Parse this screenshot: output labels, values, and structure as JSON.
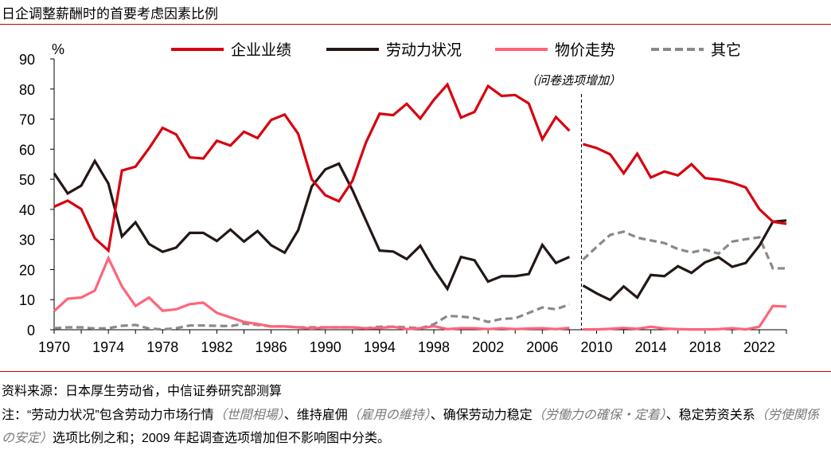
{
  "title": "日企调整薪酬时的首要考虑因素比例",
  "source": "资料来源：日本厚生劳动省，中信证券研究部测算",
  "note": [
    {
      "text": "注：“劳动力状况”包含劳动力市场行情",
      "jp": false
    },
    {
      "text": "（世間相場）",
      "jp": true
    },
    {
      "text": "、维持雇佣",
      "jp": false
    },
    {
      "text": "（雇用の維持）",
      "jp": true
    },
    {
      "text": "、确保劳动力稳定",
      "jp": false
    },
    {
      "text": "（労働力の確保・定着）",
      "jp": true
    },
    {
      "text": "、稳定劳资关系",
      "jp": false
    },
    {
      "text": "（労使関係の安定）",
      "jp": true
    },
    {
      "text": "选项比例之和；2009 年起调查选项增加但不影响图中分类。",
      "jp": false
    }
  ],
  "chart_data": {
    "type": "line",
    "ylabel": "%",
    "ylim": [
      0,
      90
    ],
    "yticks": [
      0,
      10,
      20,
      30,
      40,
      50,
      60,
      70,
      80,
      90
    ],
    "xlim": [
      1970,
      2024
    ],
    "xticks": [
      1970,
      1974,
      1978,
      1982,
      1986,
      1990,
      1994,
      1998,
      2002,
      2006,
      2010,
      2014,
      2018,
      2022
    ],
    "grid": false,
    "legend_position": "top",
    "annotation": "（问卷选项增加）",
    "break_year": 2009,
    "x": [
      1970,
      1971,
      1972,
      1973,
      1974,
      1975,
      1976,
      1977,
      1978,
      1979,
      1980,
      1981,
      1982,
      1983,
      1984,
      1985,
      1986,
      1987,
      1988,
      1989,
      1990,
      1991,
      1992,
      1993,
      1994,
      1995,
      1996,
      1997,
      1998,
      1999,
      2000,
      2001,
      2002,
      2003,
      2004,
      2005,
      2006,
      2007,
      2008,
      2009,
      2010,
      2011,
      2012,
      2013,
      2014,
      2015,
      2016,
      2017,
      2018,
      2019,
      2020,
      2021,
      2022,
      2023,
      2024
    ],
    "series": [
      {
        "name": "企业业绩",
        "color": "#d7000f",
        "dashed": false,
        "values": [
          40.9,
          42.9,
          40.1,
          30.4,
          26.3,
          52.9,
          54.2,
          60.3,
          67.1,
          64.9,
          57.3,
          56.9,
          62.8,
          61.2,
          65.8,
          63.7,
          69.7,
          71.5,
          65.1,
          50.0,
          44.7,
          42.7,
          49.5,
          62.3,
          71.8,
          71.3,
          75.1,
          70.2,
          76.4,
          81.5,
          70.5,
          72.4,
          81.0,
          77.7,
          78.0,
          75.2,
          63.3,
          70.7,
          66.1,
          61.7,
          60.4,
          58.3,
          52.0,
          58.5,
          50.6,
          52.6,
          51.3,
          55.0,
          50.4,
          49.9,
          48.9,
          47.3,
          40.1,
          35.9,
          35.2
        ]
      },
      {
        "name": "劳动力状况",
        "color": "#231815",
        "dashed": false,
        "values": [
          52.0,
          45.3,
          47.9,
          56.1,
          48.6,
          31.0,
          35.7,
          28.5,
          25.9,
          27.3,
          32.2,
          32.2,
          29.5,
          33.3,
          29.3,
          32.8,
          28.1,
          25.6,
          33.1,
          47.6,
          53.3,
          55.2,
          46.4,
          36.3,
          26.3,
          26.0,
          23.5,
          27.9,
          20.2,
          13.6,
          24.2,
          23.1,
          16.0,
          17.8,
          17.8,
          18.5,
          28.2,
          22.2,
          24.2,
          14.7,
          12.1,
          9.9,
          14.4,
          10.7,
          18.2,
          17.8,
          21.1,
          18.9,
          22.4,
          24.1,
          20.9,
          22.2,
          27.9,
          35.9,
          36.3
        ]
      },
      {
        "name": "物价走势",
        "color": "#ff6478",
        "dashed": false,
        "values": [
          6.2,
          10.3,
          10.7,
          13.0,
          23.8,
          14.4,
          7.9,
          10.7,
          6.3,
          6.8,
          8.5,
          9.0,
          5.6,
          4.1,
          2.6,
          1.9,
          1.1,
          1.1,
          0.8,
          0.4,
          0.8,
          0.8,
          0.8,
          0.5,
          0.6,
          1.0,
          0.2,
          0.5,
          1.2,
          0.2,
          0.5,
          0.5,
          0.2,
          0.5,
          0.2,
          0.4,
          0.5,
          0.2,
          0.6,
          0.1,
          0.1,
          0.3,
          0.6,
          0.3,
          1.0,
          0.4,
          0.2,
          0.1,
          0.1,
          0.2,
          0.5,
          0.1,
          1.0,
          7.9,
          7.7
        ]
      },
      {
        "name": "其它",
        "color": "#898989",
        "dashed": true,
        "values": [
          0.5,
          0.8,
          0.8,
          0.4,
          0.5,
          1.3,
          1.6,
          0.4,
          0.1,
          0.5,
          1.4,
          1.4,
          1.3,
          1.2,
          2.0,
          1.6,
          1.1,
          1.1,
          0.8,
          0.8,
          0.8,
          0.8,
          0.8,
          0.5,
          1.0,
          1.0,
          0.8,
          0.5,
          1.8,
          4.6,
          4.4,
          3.9,
          2.6,
          3.6,
          3.8,
          5.6,
          7.4,
          6.8,
          8.4,
          23.3,
          27.5,
          31.5,
          32.6,
          30.6,
          29.7,
          28.8,
          26.8,
          25.7,
          26.6,
          25.3,
          29.3,
          30.1,
          30.7,
          20.4,
          20.4
        ]
      }
    ]
  }
}
